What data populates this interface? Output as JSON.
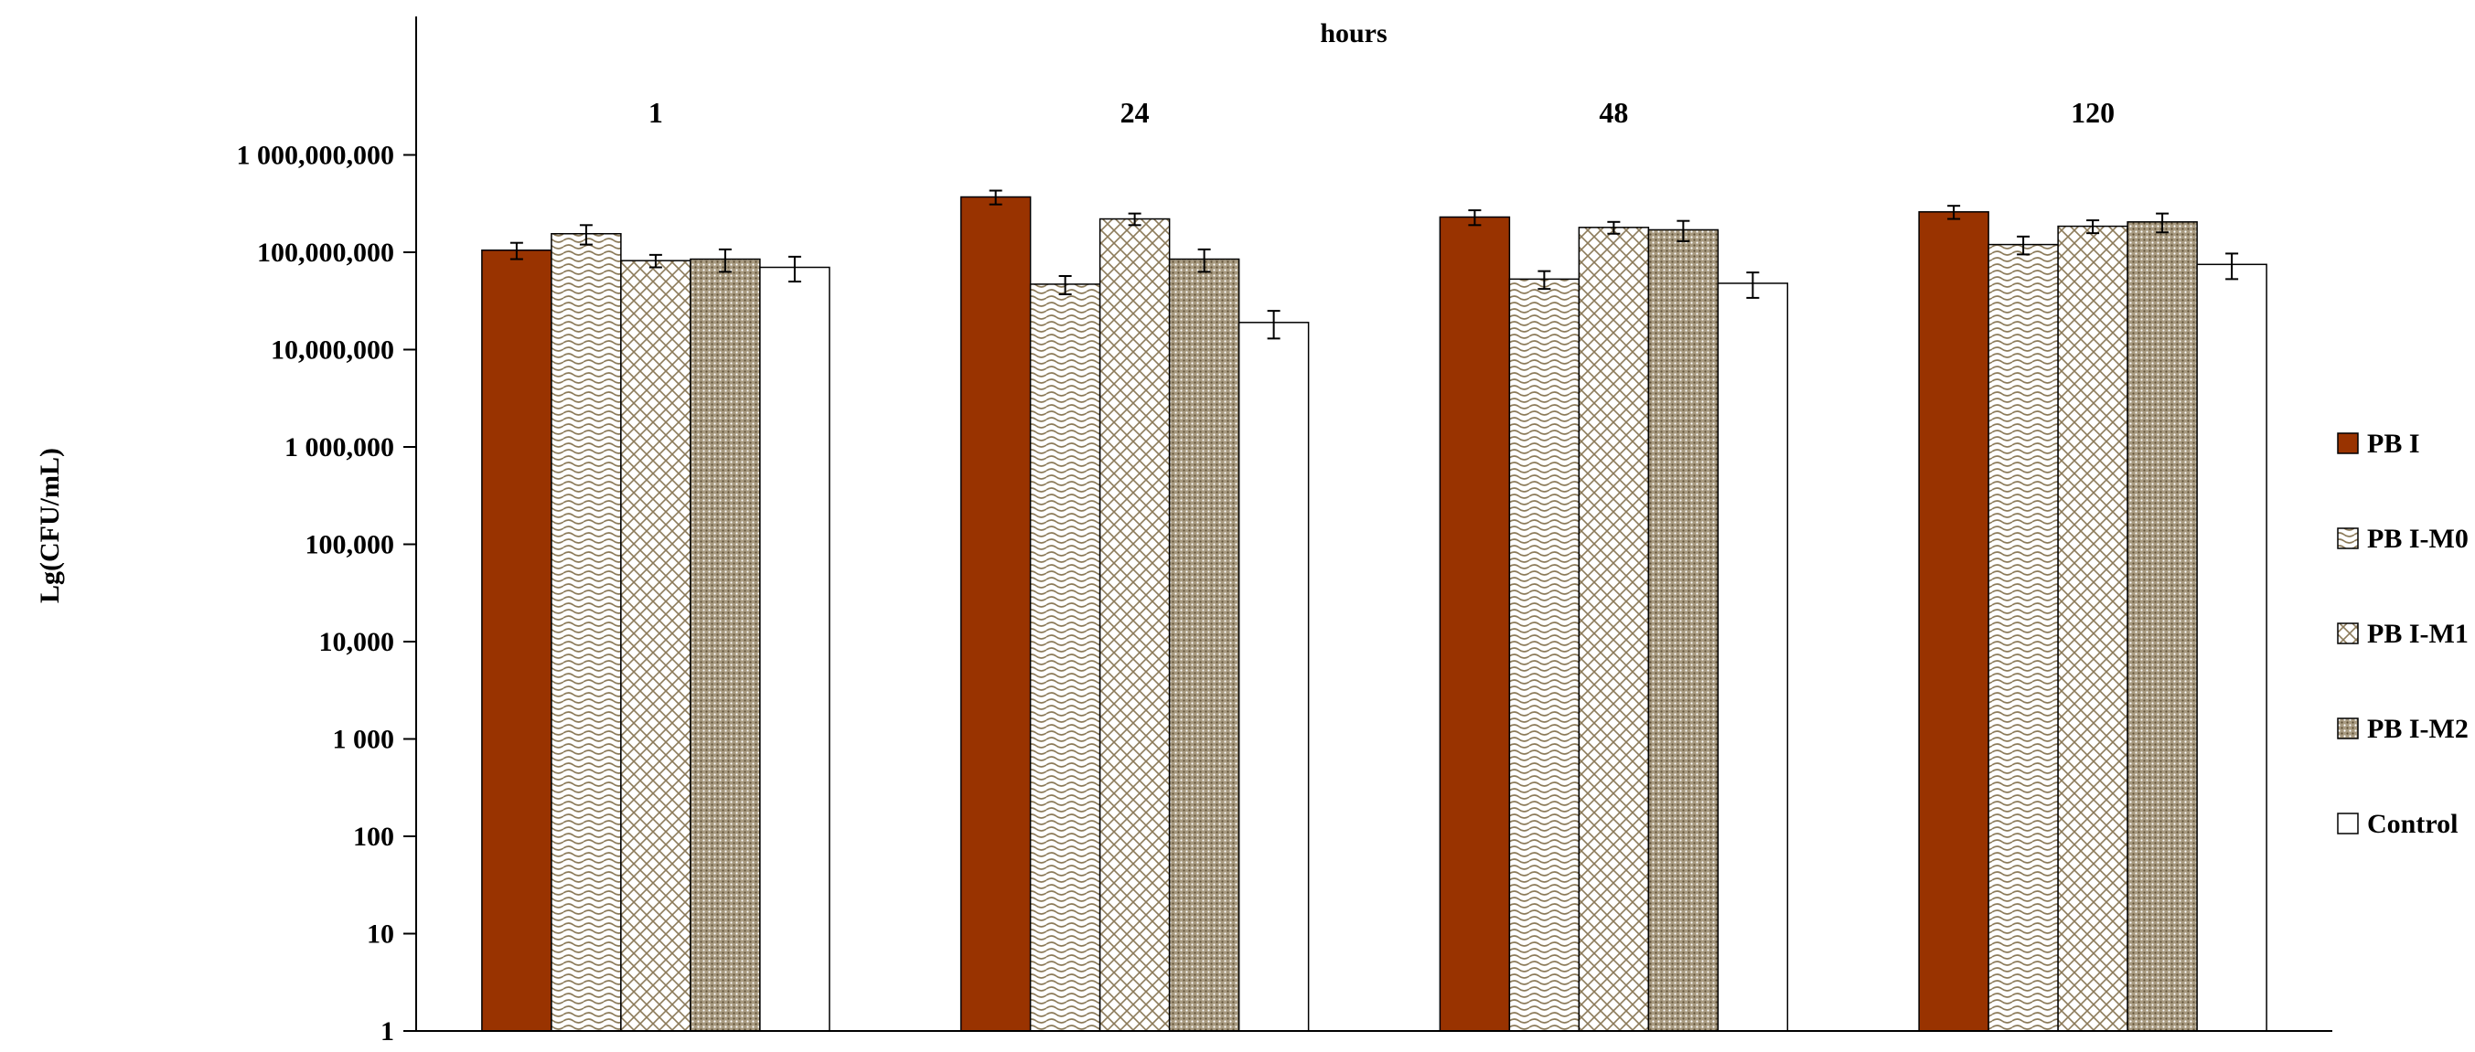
{
  "chart_data": {
    "type": "bar",
    "title": "hours",
    "ylabel": "Lg(CFU/mL)",
    "xlabel": "",
    "yscale": "log",
    "ylim": [
      1,
      10000000000
    ],
    "yticks": [
      1,
      10,
      100,
      1000,
      10000,
      100000,
      1000000,
      10000000,
      100000000,
      1000000000
    ],
    "ytick_labels": [
      "1",
      "10",
      "100",
      "1 000",
      "10,000",
      "100,000",
      "1 000,000",
      "10,000,000",
      "100,000,000",
      "1 000,000,000"
    ],
    "categories": [
      "1",
      "24",
      "48",
      "120"
    ],
    "legend_position": "right",
    "grid": false,
    "series": [
      {
        "name": "PB I",
        "color": "#993300",
        "pattern": "solid",
        "values": [
          105000000,
          370000000,
          230000000,
          260000000
        ],
        "errors": [
          20000000,
          60000000,
          40000000,
          40000000
        ]
      },
      {
        "name": "PB I-M0",
        "color": "#8c7b5a",
        "pattern": "wave",
        "values": [
          155000000,
          47000000,
          53000000,
          120000000
        ],
        "errors": [
          35000000,
          10000000,
          11000000,
          25000000
        ]
      },
      {
        "name": "PB I-M1",
        "color": "#8c7b5a",
        "pattern": "crosshatch",
        "values": [
          82000000,
          220000000,
          180000000,
          185000000
        ],
        "errors": [
          12000000,
          30000000,
          25000000,
          28000000
        ]
      },
      {
        "name": "PB I-M2",
        "color": "#8c7b5a",
        "pattern": "dots",
        "values": [
          85000000,
          85000000,
          170000000,
          205000000
        ],
        "errors": [
          22000000,
          22000000,
          40000000,
          45000000
        ]
      },
      {
        "name": "Control",
        "color": "#ffffff",
        "pattern": "none",
        "values": [
          70000000,
          19000000,
          48000000,
          75000000
        ],
        "errors": [
          20000000,
          6000000,
          14000000,
          22000000
        ]
      }
    ]
  }
}
